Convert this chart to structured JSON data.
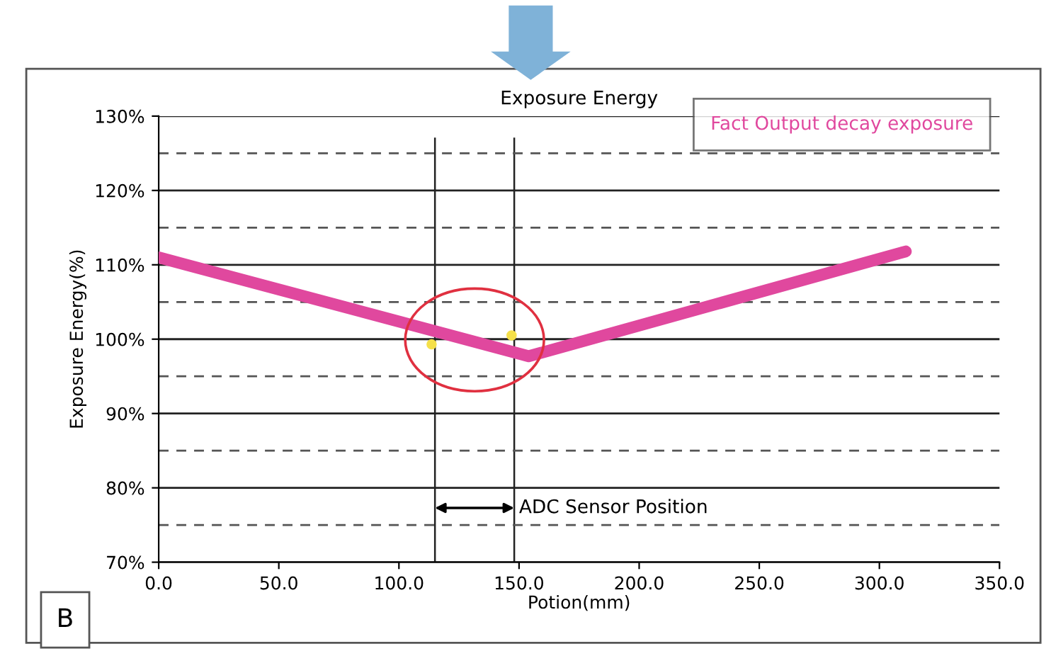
{
  "chart_data": {
    "type": "line",
    "title": "Exposure Energy",
    "xlabel": "Potion(mm)",
    "ylabel": "Exposure Energy(%)",
    "xlim": [
      0,
      350
    ],
    "ylim": [
      70,
      130
    ],
    "xticks": [
      {
        "value": 0,
        "label": "0.0"
      },
      {
        "value": 50,
        "label": "50.0"
      },
      {
        "value": 100,
        "label": "100.0"
      },
      {
        "value": 150,
        "label": "150.0"
      },
      {
        "value": 200,
        "label": "200.0"
      },
      {
        "value": 250,
        "label": "250.0"
      },
      {
        "value": 300,
        "label": "300.0"
      },
      {
        "value": 350,
        "label": "350.0"
      }
    ],
    "yticks": [
      {
        "value": 70,
        "label": "70%"
      },
      {
        "value": 80,
        "label": "80%"
      },
      {
        "value": 90,
        "label": "90%"
      },
      {
        "value": 100,
        "label": "100%"
      },
      {
        "value": 110,
        "label": "110%"
      },
      {
        "value": 120,
        "label": "120%"
      },
      {
        "value": 130,
        "label": "130%"
      }
    ],
    "grid": "y",
    "legend": "top right",
    "line_style": "solid",
    "series": [
      {
        "name": "Fact Output decay exposure",
        "color": "#e0489e",
        "marker": "none",
        "x": [
          0,
          154,
          311
        ],
        "values": [
          111,
          97.7,
          111.8
        ]
      },
      {
        "color": "#f5e04a",
        "type": "scatter",
        "marker": "circle",
        "x": [
          113.6,
          146.9
        ],
        "values": [
          99.3,
          100.5
        ]
      }
    ],
    "ref_lines": [
      {
        "axis": "x",
        "value": 115,
        "color": "#222222",
        "line_style": "solid"
      },
      {
        "axis": "x",
        "value": 148,
        "color": "#222222",
        "line_style": "solid"
      },
      {
        "axis": "y",
        "value": 75,
        "color": "#555555",
        "line_style": "dashed"
      },
      {
        "axis": "y",
        "value": 85,
        "color": "#555555",
        "line_style": "dashed"
      },
      {
        "axis": "y",
        "value": 95,
        "color": "#555555",
        "line_style": "dashed"
      },
      {
        "axis": "y",
        "value": 105,
        "color": "#555555",
        "line_style": "dashed"
      },
      {
        "axis": "y",
        "value": 115,
        "color": "#555555",
        "line_style": "dashed"
      },
      {
        "axis": "y",
        "value": 125,
        "color": "#555555",
        "line_style": "dashed"
      }
    ],
    "annotations": [
      {
        "text": "ADC Sensor Position",
        "x": 148,
        "y": 77.3
      },
      "B"
    ]
  }
}
